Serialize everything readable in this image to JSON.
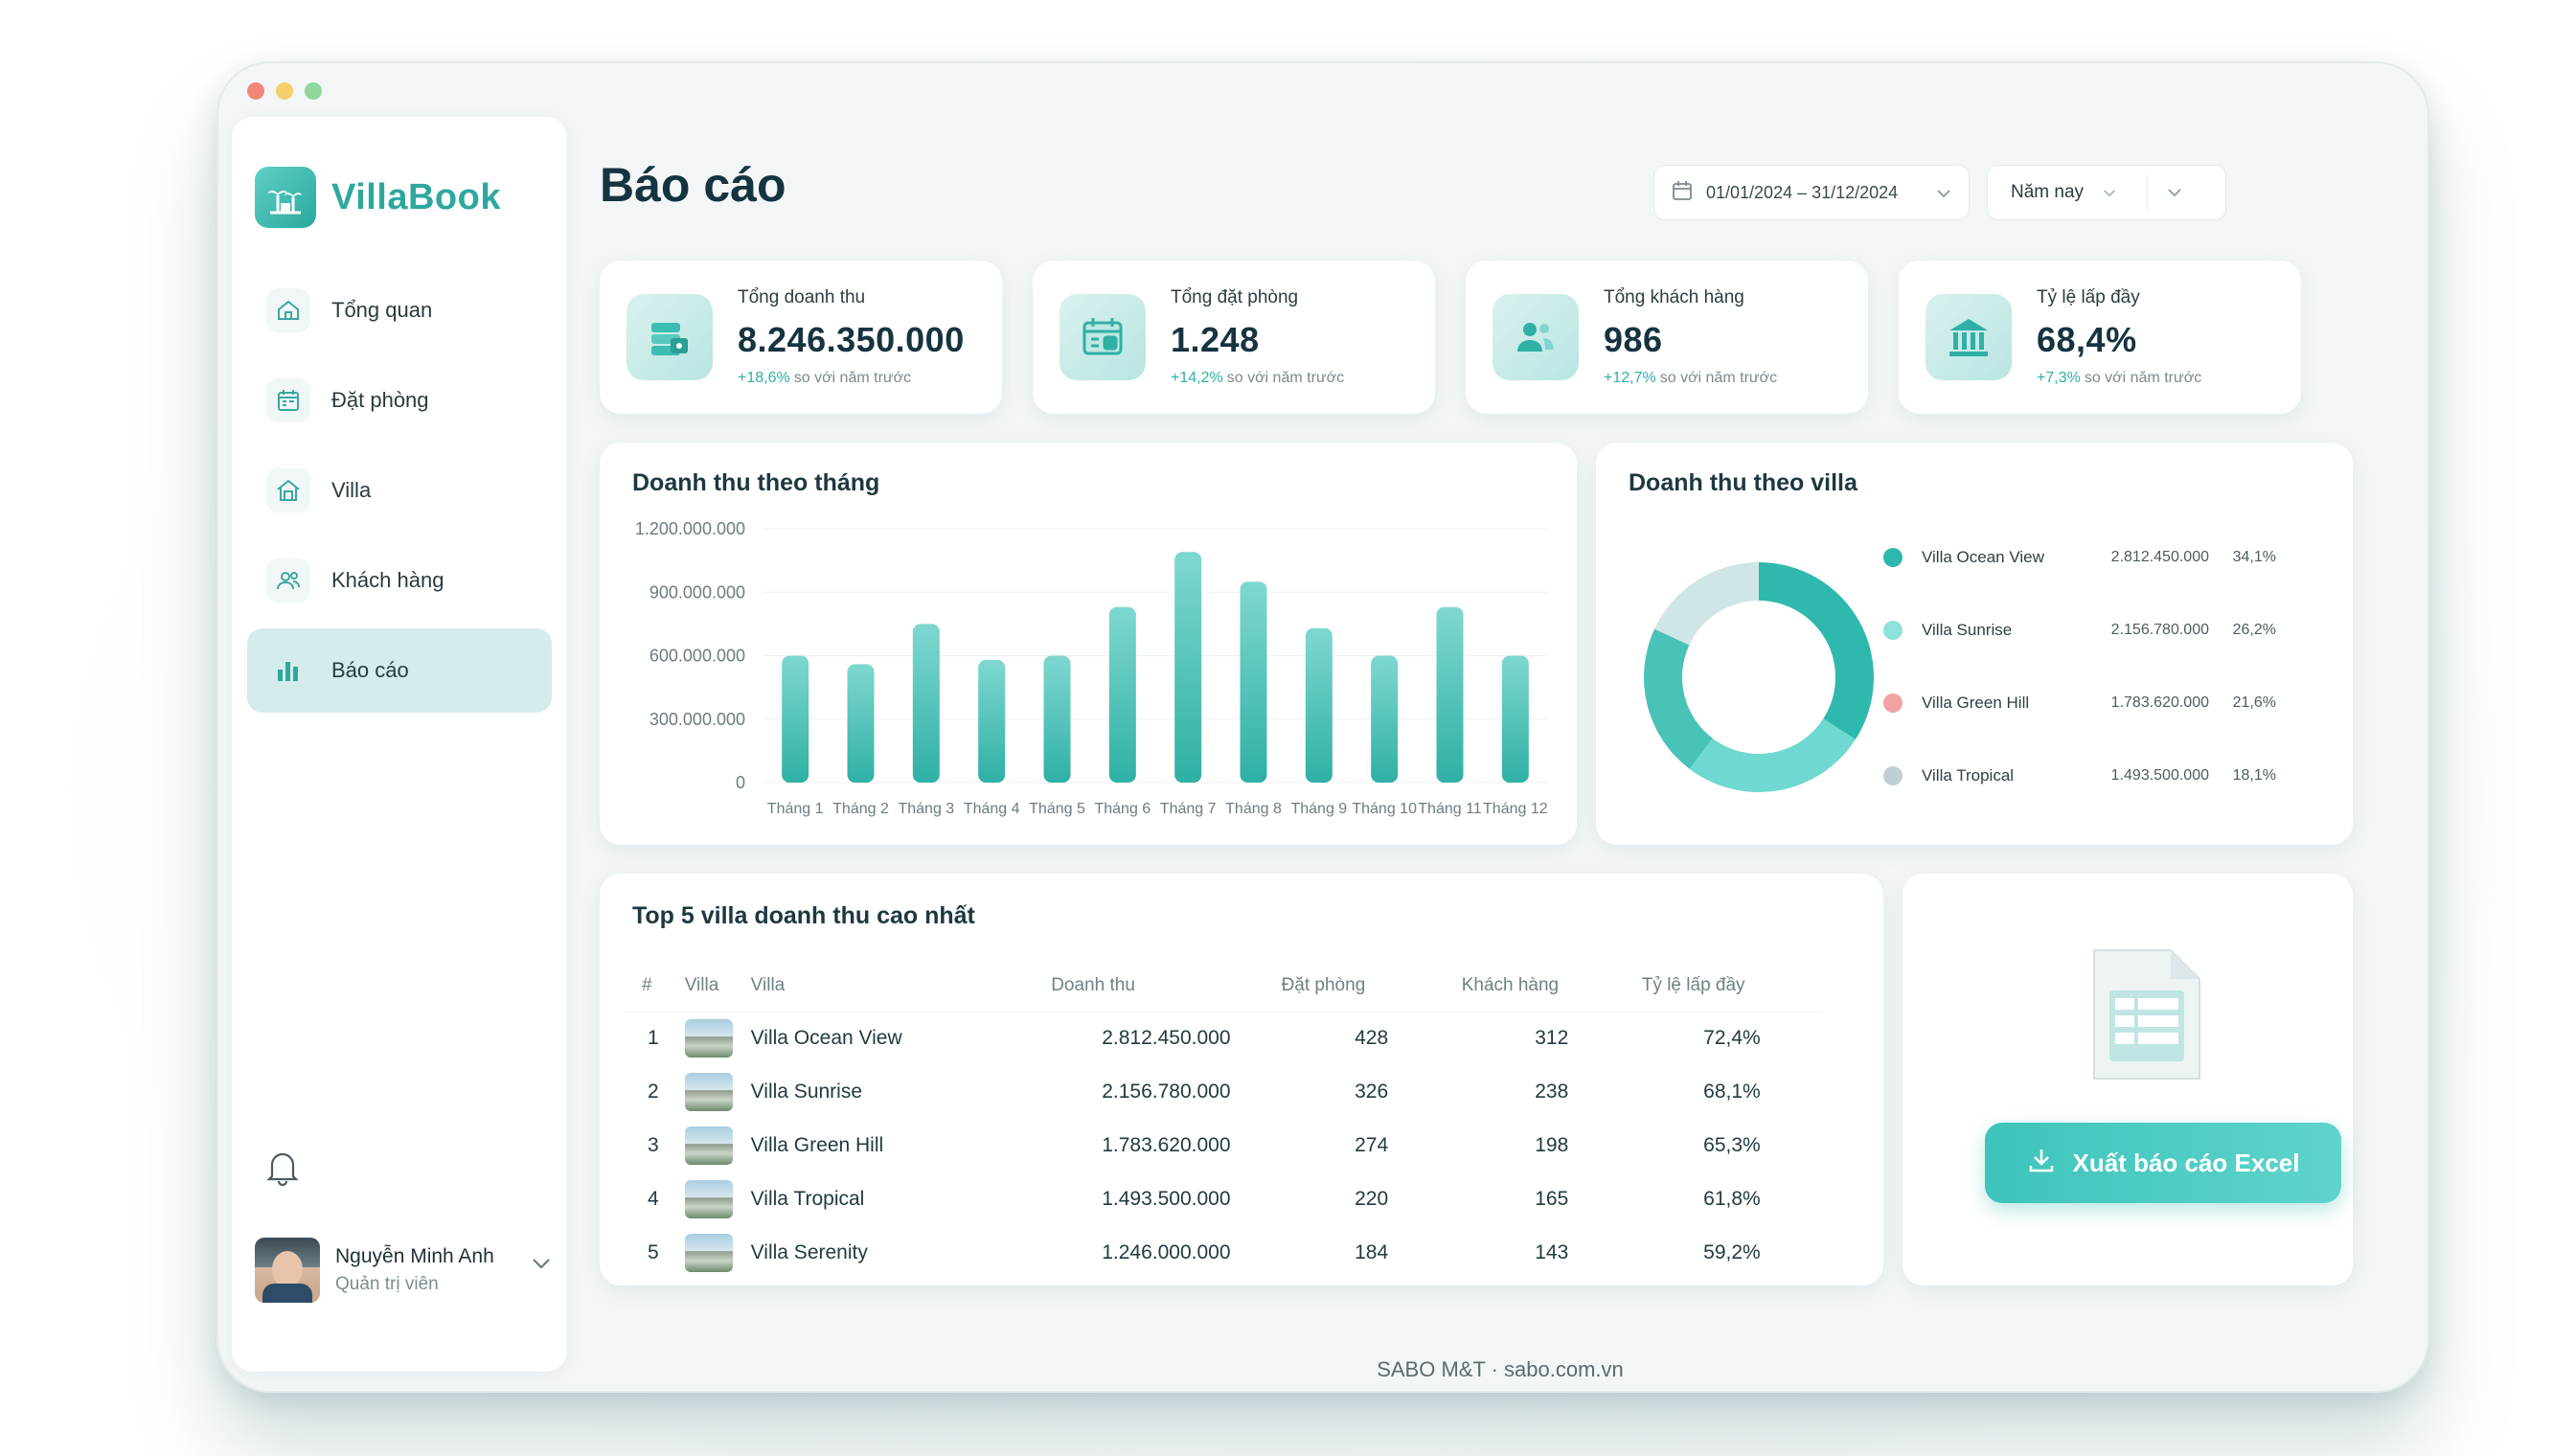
{
  "brand": {
    "name": "VillaBook"
  },
  "nav": [
    {
      "label": "Tổng quan",
      "icon": "home-icon"
    },
    {
      "label": "Đặt phòng",
      "icon": "calendar-icon"
    },
    {
      "label": "Villa",
      "icon": "villa-icon"
    },
    {
      "label": "Khách hàng",
      "icon": "users-icon"
    },
    {
      "label": "Báo cáo",
      "icon": "bar-chart-icon",
      "active": true
    }
  ],
  "user": {
    "name": "Nguyễn Minh Anh",
    "role": "Quản trị viên"
  },
  "header": {
    "title": "Báo cáo",
    "date_range": "01/01/2024 – 31/12/2024",
    "period": "Năm nay"
  },
  "kpis": [
    {
      "label": "Tổng doanh thu",
      "value": "8.246.350.000",
      "change": "+18,6%",
      "compare": "so với năm trước",
      "icon": "wallet-icon"
    },
    {
      "label": "Tổng đặt phòng",
      "value": "1.248",
      "change": "+14,2%",
      "compare": "so với năm trước",
      "icon": "calendar-icon"
    },
    {
      "label": "Tổng khách hàng",
      "value": "986",
      "change": "+12,7%",
      "compare": "so với năm trước",
      "icon": "users-icon"
    },
    {
      "label": "Tỷ lệ lấp đầy",
      "value": "68,4%",
      "change": "+7,3%",
      "compare": "so với năm trước",
      "icon": "building-icon"
    }
  ],
  "revenue_chart": {
    "title": "Doanh thu theo tháng"
  },
  "villa_chart": {
    "title": "Doanh thu theo villa"
  },
  "chart_data": [
    {
      "type": "bar",
      "title": "Doanh thu theo tháng",
      "categories": [
        "Tháng 1",
        "Tháng 2",
        "Tháng 3",
        "Tháng 4",
        "Tháng 5",
        "Tháng 6",
        "Tháng 7",
        "Tháng 8",
        "Tháng 9",
        "Tháng 10",
        "Tháng 11",
        "Tháng 12"
      ],
      "values": [
        600000000,
        560000000,
        750000000,
        580000000,
        600000000,
        830000000,
        1090000000,
        950000000,
        730000000,
        600000000,
        830000000,
        600000000
      ],
      "yticks": [
        "0",
        "300.000.000",
        "600.000.000",
        "900.000.000",
        "1.200.000.000"
      ],
      "ylim": [
        0,
        1200000000
      ],
      "color": "#3fbfb4"
    },
    {
      "type": "pie",
      "title": "Doanh thu theo villa",
      "labels": [
        "Villa Ocean View",
        "Villa Sunrise",
        "Villa Green Hill",
        "Villa Tropical"
      ],
      "values": [
        "2.812.450.000",
        "2.156.780.000",
        "1.783.620.000",
        "1.493.500.000"
      ],
      "percents": [
        "34,1%",
        "26,2%",
        "21,6%",
        "18,1%"
      ],
      "shares": [
        34.1,
        26.2,
        21.6,
        18.1
      ],
      "colors": [
        "#2fb8ad",
        "#8ee2dc",
        "#f1a3a1",
        "#bfcfd3"
      ],
      "legend": "right"
    }
  ],
  "top_villas": {
    "title": "Top 5 villa doanh thu cao nhất",
    "columns": [
      "#",
      "Villa",
      "Villa",
      "Doanh thu",
      "Đặt phòng",
      "Khách hàng",
      "Tỷ lệ lấp đầy"
    ],
    "rows": [
      {
        "rank": "1",
        "name": "Villa Ocean View",
        "revenue": "2.812.450.000",
        "bookings": "428",
        "customers": "312",
        "occupancy": "72,4%"
      },
      {
        "rank": "2",
        "name": "Villa Sunrise",
        "revenue": "2.156.780.000",
        "bookings": "326",
        "customers": "238",
        "occupancy": "68,1%"
      },
      {
        "rank": "3",
        "name": "Villa Green Hill",
        "revenue": "1.783.620.000",
        "bookings": "274",
        "customers": "198",
        "occupancy": "65,3%"
      },
      {
        "rank": "4",
        "name": "Villa Tropical",
        "revenue": "1.493.500.000",
        "bookings": "220",
        "customers": "165",
        "occupancy": "61,8%"
      },
      {
        "rank": "5",
        "name": "Villa Serenity",
        "revenue": "1.246.000.000",
        "bookings": "184",
        "customers": "143",
        "occupancy": "59,2%"
      }
    ]
  },
  "export": {
    "label": "Xuất báo cáo Excel"
  },
  "footer": {
    "text": "SABO M&T · sabo.com.vn"
  }
}
